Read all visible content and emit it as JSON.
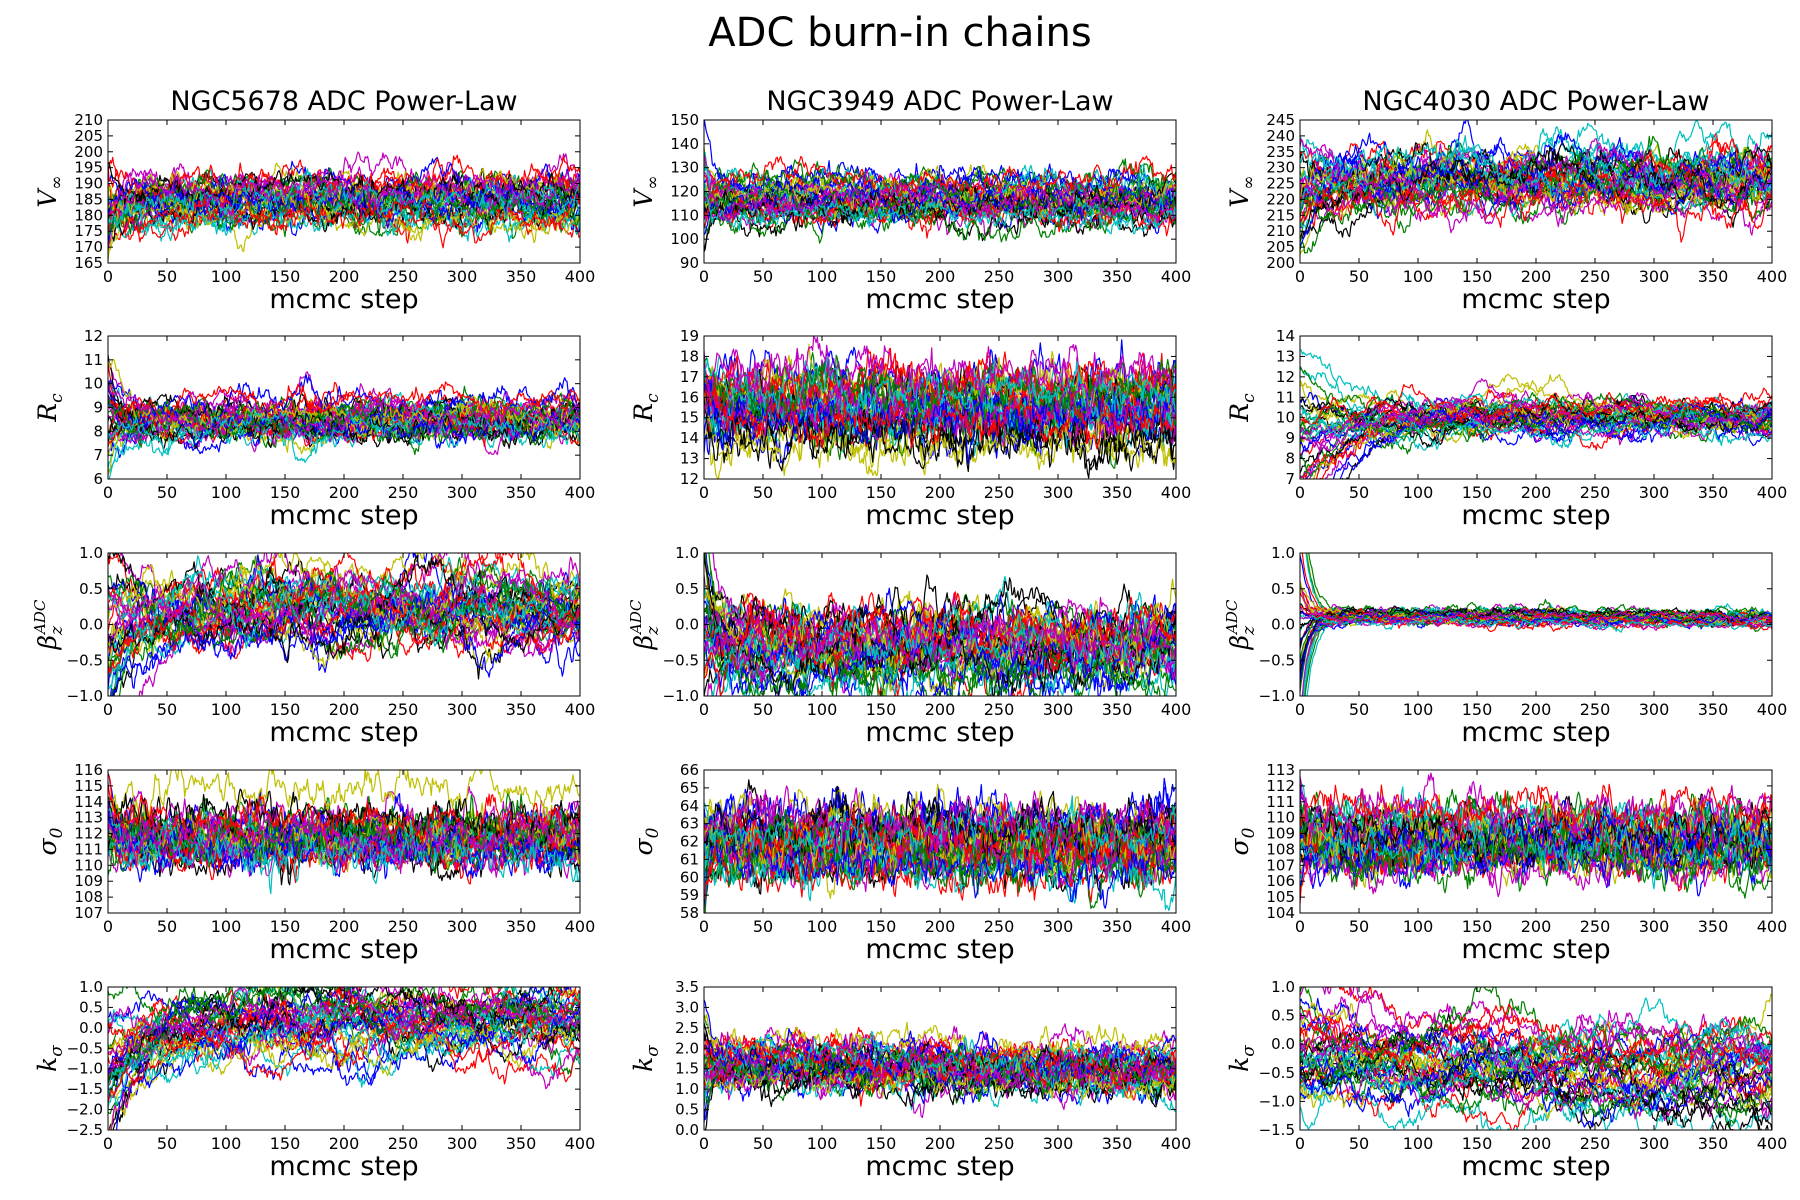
{
  "figure": {
    "title": "ADC burn-in chains",
    "n_walkers": 40,
    "walker_colors": [
      "#0000ff",
      "#008000",
      "#ff0000",
      "#00bfbf",
      "#bf00bf",
      "#bfbf00",
      "#000000"
    ]
  },
  "columns": [
    "NGC5678 ADC Power-Law",
    "NGC3949 ADC Power-Law",
    "NGC4030 ADC Power-Law"
  ],
  "chart_data": [
    {
      "type": "line",
      "galaxy": "NGC5678",
      "title": "NGC5678 ADC Power-Law",
      "ylabel": "V_∞",
      "ylabel_main": "V",
      "ylabel_sub": "∞",
      "ylabel_sup": "",
      "xlabel": "mcmc step",
      "xlim": [
        0,
        400
      ],
      "xticks": [
        0,
        50,
        100,
        150,
        200,
        250,
        300,
        350,
        400
      ],
      "ylim": [
        165,
        210
      ],
      "yticks": [
        165,
        170,
        175,
        180,
        185,
        190,
        195,
        200,
        205,
        210
      ],
      "ytick_labels": [
        "165",
        "170",
        "175",
        "180",
        "185",
        "190",
        "195",
        "200",
        "205",
        "210"
      ],
      "chains": {
        "start_center": 178,
        "start_spread": 8,
        "tau": 10,
        "center": 185,
        "end_center": 185,
        "spread": 3.2,
        "noise": 2.4
      }
    },
    {
      "type": "line",
      "galaxy": "NGC3949",
      "title": "NGC3949 ADC Power-Law",
      "ylabel": "V_∞",
      "ylabel_main": "V",
      "ylabel_sub": "∞",
      "ylabel_sup": "",
      "xlabel": "mcmc step",
      "xlim": [
        0,
        400
      ],
      "xticks": [
        0,
        50,
        100,
        150,
        200,
        250,
        300,
        350,
        400
      ],
      "ylim": [
        90,
        150
      ],
      "yticks": [
        90,
        100,
        110,
        120,
        130,
        140,
        150
      ],
      "ytick_labels": [
        "90",
        "100",
        "110",
        "120",
        "130",
        "140",
        "150"
      ],
      "chains": {
        "start_center": 116,
        "start_spread": 12,
        "tau": 8,
        "center": 116,
        "end_center": 115,
        "spread": 4.5,
        "noise": 3.0
      }
    },
    {
      "type": "line",
      "galaxy": "NGC4030",
      "title": "NGC4030 ADC Power-Law",
      "ylabel": "V_∞",
      "ylabel_main": "V",
      "ylabel_sub": "∞",
      "ylabel_sup": "",
      "xlabel": "mcmc step",
      "xlim": [
        0,
        400
      ],
      "xticks": [
        0,
        50,
        100,
        150,
        200,
        250,
        300,
        350,
        400
      ],
      "ylim": [
        200,
        245
      ],
      "yticks": [
        200,
        205,
        210,
        215,
        220,
        225,
        230,
        235,
        240,
        245
      ],
      "ytick_labels": [
        "200",
        "205",
        "210",
        "215",
        "220",
        "225",
        "230",
        "235",
        "240",
        "245"
      ],
      "chains": {
        "start_center": 218,
        "start_spread": 9,
        "tau": 25,
        "center": 226,
        "end_center": 226,
        "spread": 3.0,
        "noise": 2.4
      }
    },
    {
      "type": "line",
      "galaxy": "NGC5678",
      "ylabel": "R_c",
      "ylabel_main": "R",
      "ylabel_sub": "c",
      "ylabel_sup": "",
      "xlabel": "mcmc step",
      "xlim": [
        0,
        400
      ],
      "xticks": [
        0,
        50,
        100,
        150,
        200,
        250,
        300,
        350,
        400
      ],
      "ylim": [
        6,
        12
      ],
      "yticks": [
        6,
        7,
        8,
        9,
        10,
        11,
        12
      ],
      "ytick_labels": [
        "6",
        "7",
        "8",
        "9",
        "10",
        "11",
        "12"
      ],
      "chains": {
        "start_center": 8.6,
        "start_spread": 1.6,
        "tau": 12,
        "center": 8.4,
        "end_center": 8.5,
        "spread": 0.35,
        "noise": 0.28
      }
    },
    {
      "type": "line",
      "galaxy": "NGC3949",
      "ylabel": "R_c",
      "ylabel_main": "R",
      "ylabel_sub": "c",
      "ylabel_sup": "",
      "xlabel": "mcmc step",
      "xlim": [
        0,
        400
      ],
      "xticks": [
        0,
        50,
        100,
        150,
        200,
        250,
        300,
        350,
        400
      ],
      "ylim": [
        12,
        19
      ],
      "yticks": [
        12,
        13,
        14,
        15,
        16,
        17,
        18,
        19
      ],
      "ytick_labels": [
        "12",
        "13",
        "14",
        "15",
        "16",
        "17",
        "18",
        "19"
      ],
      "chains": {
        "start_center": 15.8,
        "start_spread": 1.2,
        "tau": 5,
        "center": 15.8,
        "end_center": 15.7,
        "spread": 0.9,
        "noise": 0.65
      }
    },
    {
      "type": "line",
      "galaxy": "NGC4030",
      "ylabel": "R_c",
      "ylabel_main": "R",
      "ylabel_sub": "c",
      "ylabel_sup": "",
      "xlabel": "mcmc step",
      "xlim": [
        0,
        400
      ],
      "xticks": [
        0,
        50,
        100,
        150,
        200,
        250,
        300,
        350,
        400
      ],
      "ylim": [
        7,
        14
      ],
      "yticks": [
        7,
        8,
        9,
        10,
        11,
        12,
        13,
        14
      ],
      "ytick_labels": [
        "7",
        "8",
        "9",
        "10",
        "11",
        "12",
        "13",
        "14"
      ],
      "chains": {
        "start_center": 8.6,
        "start_spread": 2.4,
        "tau": 30,
        "center": 9.9,
        "end_center": 10.0,
        "spread": 0.28,
        "noise": 0.22
      }
    },
    {
      "type": "line",
      "galaxy": "NGC5678",
      "ylabel": "β_z^ADC",
      "ylabel_main": "β",
      "ylabel_sub": "z",
      "ylabel_sup": "ADC",
      "xlabel": "mcmc step",
      "xlim": [
        0,
        400
      ],
      "xticks": [
        0,
        50,
        100,
        150,
        200,
        250,
        300,
        350,
        400
      ],
      "ylim": [
        -1.0,
        1.0
      ],
      "yticks": [
        -1.0,
        -0.5,
        0.0,
        0.5,
        1.0
      ],
      "ytick_labels": [
        "−1.0",
        "−0.5",
        "0.0",
        "0.5",
        "1.0"
      ],
      "chains": {
        "start_center": -0.2,
        "start_spread": 0.6,
        "tau": 35,
        "center": 0.22,
        "end_center": 0.2,
        "spread": 0.14,
        "noise": 0.12
      }
    },
    {
      "type": "line",
      "galaxy": "NGC3949",
      "ylabel": "β_z^ADC",
      "ylabel_main": "β",
      "ylabel_sub": "z",
      "ylabel_sup": "ADC",
      "xlabel": "mcmc step",
      "xlim": [
        0,
        400
      ],
      "xticks": [
        0,
        50,
        100,
        150,
        200,
        250,
        300,
        350,
        400
      ],
      "ylim": [
        -1.0,
        1.0
      ],
      "yticks": [
        -1.0,
        -0.5,
        0.0,
        0.5,
        1.0
      ],
      "ytick_labels": [
        "−1.0",
        "−0.5",
        "0.0",
        "0.5",
        "1.0"
      ],
      "chains": {
        "start_center": 0.1,
        "start_spread": 0.7,
        "tau": 12,
        "center": -0.3,
        "end_center": -0.32,
        "spread": 0.2,
        "noise": 0.16
      }
    },
    {
      "type": "line",
      "galaxy": "NGC4030",
      "ylabel": "β_z^ADC",
      "ylabel_main": "β",
      "ylabel_sub": "z",
      "ylabel_sup": "ADC",
      "xlabel": "mcmc step",
      "xlim": [
        0,
        400
      ],
      "xticks": [
        0,
        50,
        100,
        150,
        200,
        250,
        300,
        350,
        400
      ],
      "ylim": [
        -1.0,
        1.0
      ],
      "yticks": [
        -1.0,
        -0.5,
        0.0,
        0.5,
        1.0
      ],
      "ytick_labels": [
        "−1.0",
        "−0.5",
        "0.0",
        "0.5",
        "1.0"
      ],
      "chains": {
        "start_center": 0.0,
        "start_spread": 1.0,
        "tau": 8,
        "center": 0.12,
        "end_center": 0.08,
        "spread": 0.04,
        "noise": 0.035
      }
    },
    {
      "type": "line",
      "galaxy": "NGC5678",
      "ylabel": "σ_0",
      "ylabel_main": "σ",
      "ylabel_sub": "0",
      "ylabel_sup": "",
      "xlabel": "mcmc step",
      "xlim": [
        0,
        400
      ],
      "xticks": [
        0,
        50,
        100,
        150,
        200,
        250,
        300,
        350,
        400
      ],
      "ylim": [
        107,
        116
      ],
      "yticks": [
        107,
        108,
        109,
        110,
        111,
        112,
        113,
        114,
        115,
        116
      ],
      "ytick_labels": [
        "107",
        "108",
        "109",
        "110",
        "111",
        "112",
        "113",
        "114",
        "115",
        "116"
      ],
      "chains": {
        "start_center": 112,
        "start_spread": 1.5,
        "tau": 6,
        "center": 111.6,
        "end_center": 111.6,
        "spread": 0.9,
        "noise": 0.7
      }
    },
    {
      "type": "line",
      "galaxy": "NGC3949",
      "ylabel": "σ_0",
      "ylabel_main": "σ",
      "ylabel_sub": "0",
      "ylabel_sup": "",
      "xlabel": "mcmc step",
      "xlim": [
        0,
        400
      ],
      "xticks": [
        0,
        50,
        100,
        150,
        200,
        250,
        300,
        350,
        400
      ],
      "ylim": [
        58,
        66
      ],
      "yticks": [
        58,
        59,
        60,
        61,
        62,
        63,
        64,
        65,
        66
      ],
      "ytick_labels": [
        "58",
        "59",
        "60",
        "61",
        "62",
        "63",
        "64",
        "65",
        "66"
      ],
      "chains": {
        "start_center": 61.8,
        "start_spread": 1.6,
        "tau": 5,
        "center": 61.9,
        "end_center": 61.9,
        "spread": 0.9,
        "noise": 0.75
      }
    },
    {
      "type": "line",
      "galaxy": "NGC4030",
      "ylabel": "σ_0",
      "ylabel_main": "σ",
      "ylabel_sub": "0",
      "ylabel_sup": "",
      "xlabel": "mcmc step",
      "xlim": [
        0,
        400
      ],
      "xticks": [
        0,
        50,
        100,
        150,
        200,
        250,
        300,
        350,
        400
      ],
      "ylim": [
        104,
        113
      ],
      "yticks": [
        104,
        105,
        106,
        107,
        108,
        109,
        110,
        111,
        112,
        113
      ],
      "ytick_labels": [
        "104",
        "105",
        "106",
        "107",
        "108",
        "109",
        "110",
        "111",
        "112",
        "113"
      ],
      "chains": {
        "start_center": 108.8,
        "start_spread": 1.8,
        "tau": 6,
        "center": 108.6,
        "end_center": 108.6,
        "spread": 0.9,
        "noise": 0.75
      }
    },
    {
      "type": "line",
      "galaxy": "NGC5678",
      "ylabel": "k_σ",
      "ylabel_main": "k",
      "ylabel_sub": "σ",
      "ylabel_sup": "",
      "xlabel": "mcmc step",
      "xlim": [
        0,
        400
      ],
      "xticks": [
        0,
        50,
        100,
        150,
        200,
        250,
        300,
        350,
        400
      ],
      "ylim": [
        -2.5,
        1.0
      ],
      "yticks": [
        -2.5,
        -2.0,
        -1.5,
        -1.0,
        -0.5,
        0.0,
        0.5,
        1.0
      ],
      "ytick_labels": [
        "−2.5",
        "−2.0",
        "−1.5",
        "−1.0",
        "−0.5",
        "0.0",
        "0.5",
        "1.0"
      ],
      "chains": {
        "start_center": -1.2,
        "start_spread": 0.7,
        "tau": 40,
        "center": 0.2,
        "end_center": 0.15,
        "spread": 0.2,
        "noise": 0.17
      }
    },
    {
      "type": "line",
      "galaxy": "NGC3949",
      "ylabel": "k_σ",
      "ylabel_main": "k",
      "ylabel_sub": "σ",
      "ylabel_sup": "",
      "xlabel": "mcmc step",
      "xlim": [
        0,
        400
      ],
      "xticks": [
        0,
        50,
        100,
        150,
        200,
        250,
        300,
        350,
        400
      ],
      "ylim": [
        0.0,
        3.5
      ],
      "yticks": [
        0.0,
        0.5,
        1.0,
        1.5,
        2.0,
        2.5,
        3.0,
        3.5
      ],
      "ytick_labels": [
        "0.0",
        "0.5",
        "1.0",
        "1.5",
        "2.0",
        "2.5",
        "3.0",
        "3.5"
      ],
      "chains": {
        "start_center": 1.7,
        "start_spread": 0.7,
        "tau": 8,
        "center": 1.6,
        "end_center": 1.45,
        "spread": 0.25,
        "noise": 0.2
      }
    },
    {
      "type": "line",
      "galaxy": "NGC4030",
      "ylabel": "k_σ",
      "ylabel_main": "k",
      "ylabel_sub": "σ",
      "ylabel_sup": "",
      "xlabel": "mcmc step",
      "xlim": [
        0,
        400
      ],
      "xticks": [
        0,
        50,
        100,
        150,
        200,
        250,
        300,
        350,
        400
      ],
      "ylim": [
        -1.5,
        1.0
      ],
      "yticks": [
        -1.5,
        -1.0,
        -0.5,
        0.0,
        0.5,
        1.0
      ],
      "ytick_labels": [
        "−1.5",
        "−1.0",
        "−0.5",
        "0.0",
        "0.5",
        "1.0"
      ],
      "chains": {
        "start_center": -0.2,
        "start_spread": 0.5,
        "tau": 80,
        "center": -0.45,
        "end_center": -0.65,
        "spread": 0.15,
        "noise": 0.12
      }
    }
  ]
}
